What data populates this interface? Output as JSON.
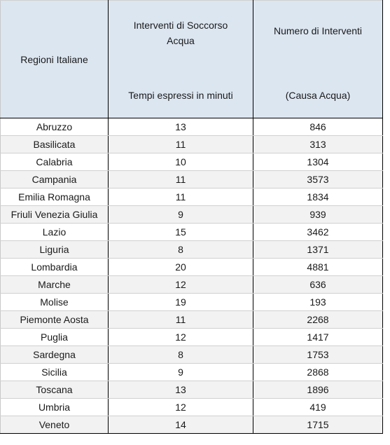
{
  "header": {
    "region": "Regioni Italiane",
    "time_line1": "Interventi di Soccorso",
    "time_line2": "Acqua",
    "time_line3": "Tempi espressi in minuti",
    "count_line1": "Numero di Interventi",
    "count_line2": "(Causa Acqua)"
  },
  "rows": [
    {
      "region": "Abruzzo",
      "time": "13",
      "count": "846"
    },
    {
      "region": "Basilicata",
      "time": "11",
      "count": "313"
    },
    {
      "region": "Calabria",
      "time": "10",
      "count": "1304"
    },
    {
      "region": "Campania",
      "time": "11",
      "count": "3573"
    },
    {
      "region": "Emilia Romagna",
      "time": "11",
      "count": "1834"
    },
    {
      "region": "Friuli Venezia Giulia",
      "time": "9",
      "count": "939"
    },
    {
      "region": "Lazio",
      "time": "15",
      "count": "3462"
    },
    {
      "region": "Liguria",
      "time": "8",
      "count": "1371"
    },
    {
      "region": "Lombardia",
      "time": "20",
      "count": "4881"
    },
    {
      "region": "Marche",
      "time": "12",
      "count": "636"
    },
    {
      "region": "Molise",
      "time": "19",
      "count": "193"
    },
    {
      "region": "Piemonte Aosta",
      "time": "11",
      "count": "2268"
    },
    {
      "region": "Puglia",
      "time": "12",
      "count": "1417"
    },
    {
      "region": "Sardegna",
      "time": "8",
      "count": "1753"
    },
    {
      "region": "Sicilia",
      "time": "9",
      "count": "2868"
    },
    {
      "region": "Toscana",
      "time": "13",
      "count": "1896"
    },
    {
      "region": "Umbria",
      "time": "12",
      "count": "419"
    },
    {
      "region": "Veneto",
      "time": "14",
      "count": "1715"
    }
  ]
}
